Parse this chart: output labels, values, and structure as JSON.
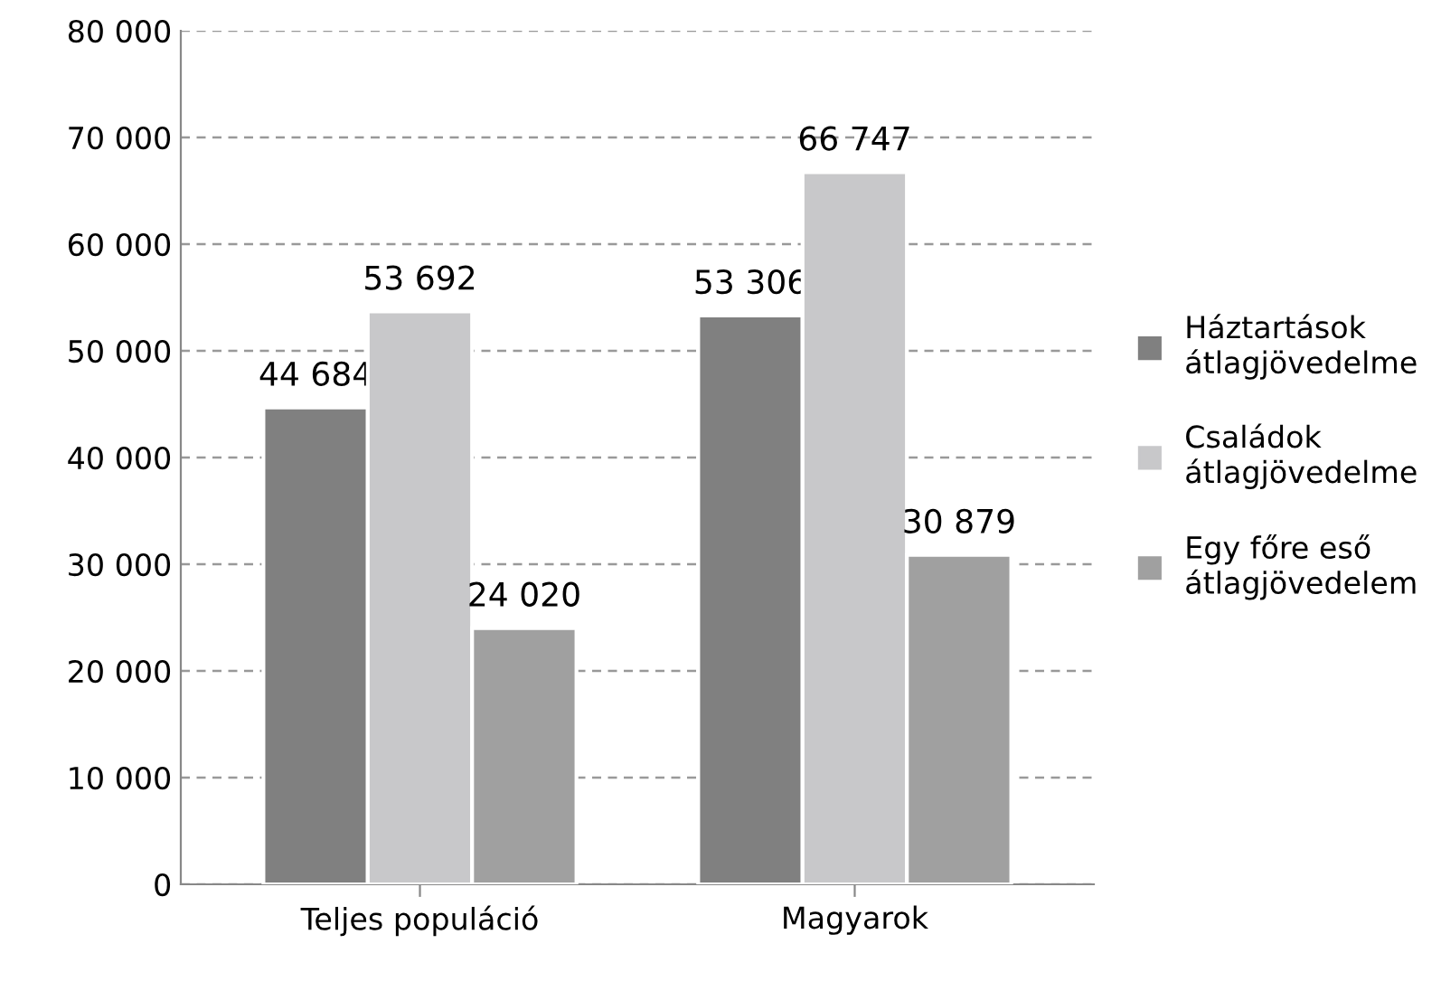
{
  "chart_data": {
    "type": "bar",
    "categories": [
      "Teljes populáció",
      "Magyarok"
    ],
    "series": [
      {
        "name": "Háztartások\nátlagjövedelme",
        "color": "#808080",
        "values": [
          44684,
          53306
        ],
        "value_labels": [
          "44 684",
          "53 306"
        ]
      },
      {
        "name": "Családok\nátlagjövedelme",
        "color": "#c8c8ca",
        "values": [
          53692,
          66747
        ],
        "value_labels": [
          "53 692",
          "66 747"
        ]
      },
      {
        "name": "Egy főre eső\nátlagjövedelem",
        "color": "#a0a0a0",
        "values": [
          24020,
          30879
        ],
        "value_labels": [
          "24 020",
          "30 879"
        ]
      }
    ],
    "ylim": [
      0,
      80000
    ],
    "yticks": [
      {
        "value": 0,
        "label": "0"
      },
      {
        "value": 10000,
        "label": "10 000"
      },
      {
        "value": 20000,
        "label": "20 000"
      },
      {
        "value": 30000,
        "label": "30 000"
      },
      {
        "value": 40000,
        "label": "40 000"
      },
      {
        "value": 50000,
        "label": "50 000"
      },
      {
        "value": 60000,
        "label": "60 000"
      },
      {
        "value": 70000,
        "label": "70 000"
      },
      {
        "value": 80000,
        "label": "80 000"
      }
    ],
    "grid": "y",
    "legend": "right"
  }
}
